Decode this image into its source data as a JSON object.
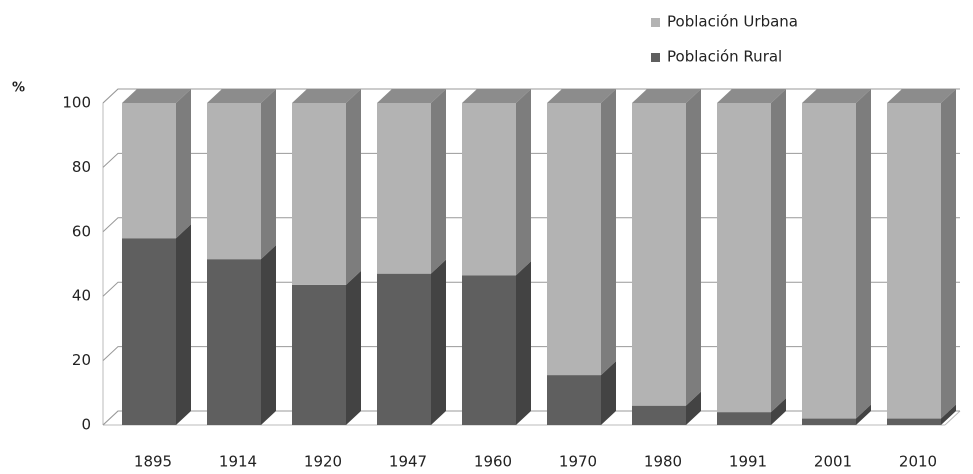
{
  "chart_data": {
    "type": "bar3d_stacked",
    "y_label": "%",
    "categories": [
      "1895",
      "1914",
      "1920",
      "1947",
      "1960",
      "1970",
      "1980",
      "1991",
      "2001",
      "2010"
    ],
    "series": [
      {
        "name": "Población Urbana",
        "color": "#b3b3b3",
        "values": [
          42,
          48.5,
          56.5,
          53,
          53.5,
          84.5,
          94,
          96,
          98,
          98
        ]
      },
      {
        "name": "Población Rural",
        "color": "#5f5f5f",
        "values": [
          58,
          51.5,
          43.5,
          47,
          46.5,
          15.5,
          6,
          4,
          2,
          2
        ]
      }
    ],
    "ylim": [
      0,
      100
    ],
    "yticks": [
      0,
      20,
      40,
      60,
      80,
      100
    ],
    "grid": true,
    "legend": "top-right"
  }
}
